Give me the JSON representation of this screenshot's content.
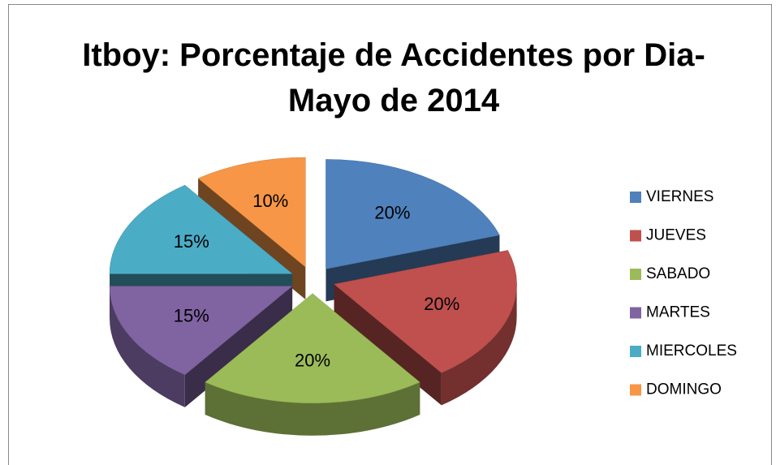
{
  "chart_data": {
    "type": "pie",
    "title": "Itboy: Porcentaje de Accidentes por Dia- Mayo de 2014",
    "categories": [
      "VIERNES",
      "JUEVES",
      "SABADO",
      "MARTES",
      "MIERCOLES",
      "DOMINGO"
    ],
    "values": [
      20,
      20,
      20,
      15,
      15,
      10
    ],
    "value_labels": [
      "20%",
      "20%",
      "20%",
      "15%",
      "15%",
      "10%"
    ],
    "colors": [
      "#4f81bd",
      "#c0504d",
      "#9bbb59",
      "#8064a2",
      "#4bacc6",
      "#f79646"
    ],
    "legend": "right"
  }
}
